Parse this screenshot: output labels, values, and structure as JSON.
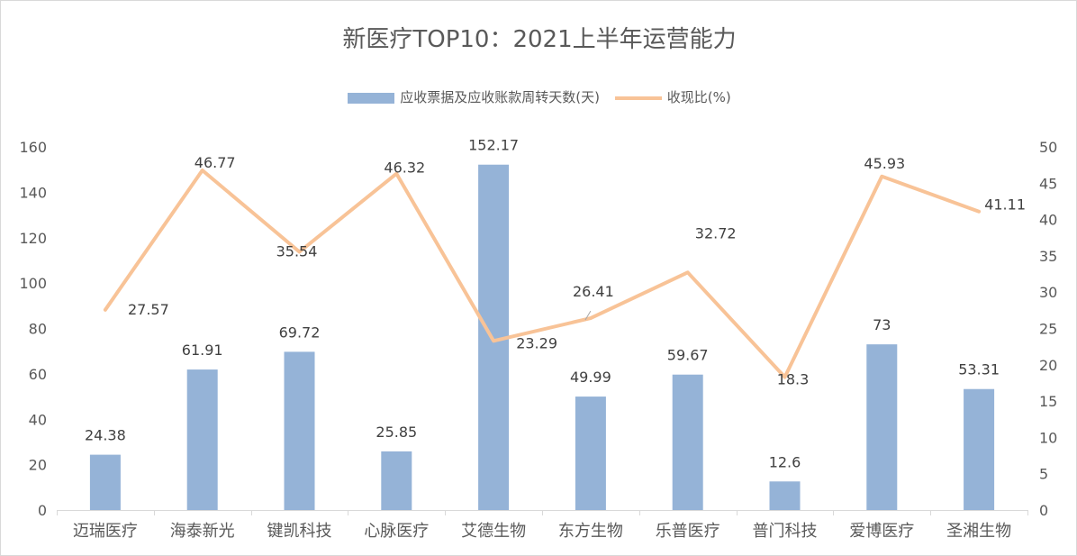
{
  "chart_data": {
    "type": "bar+line",
    "title": "新医疗TOP10：2021上半年运营能力",
    "categories": [
      "迈瑞医疗",
      "海泰新光",
      "键凯科技",
      "心脉医疗",
      "艾德生物",
      "东方生物",
      "乐普医疗",
      "普门科技",
      "爱博医疗",
      "圣湘生物"
    ],
    "series": [
      {
        "name": "应收票据及应收账款周转天数(天)",
        "type": "bar",
        "axis": "left",
        "color": "#95b3d7",
        "values": [
          24.38,
          61.91,
          69.72,
          25.85,
          152.17,
          49.99,
          59.67,
          12.6,
          73,
          53.31
        ],
        "labels": [
          "24.38",
          "61.91",
          "69.72",
          "25.85",
          "152.17",
          "49.99",
          "59.67",
          "12.6",
          "73",
          "53.31"
        ]
      },
      {
        "name": "收现比(%)",
        "type": "line",
        "axis": "right",
        "color": "#f8c397",
        "values": [
          27.57,
          46.77,
          35.54,
          46.32,
          23.29,
          26.41,
          32.72,
          18.3,
          45.93,
          41.11
        ],
        "labels": [
          "27.57",
          "46.77",
          "35.54",
          "46.32",
          "23.29",
          "26.41",
          "32.72",
          "18.3",
          "45.93",
          "41.11"
        ]
      }
    ],
    "y_left": {
      "min": 0,
      "max": 160,
      "ticks": [
        "0",
        "20",
        "40",
        "60",
        "80",
        "100",
        "120",
        "140",
        "160"
      ]
    },
    "y_right": {
      "min": 0,
      "max": 50,
      "ticks": [
        "0",
        "5",
        "10",
        "15",
        "20",
        "25",
        "30",
        "35",
        "40",
        "45",
        "50"
      ]
    },
    "legend": "top",
    "grid": false
  }
}
